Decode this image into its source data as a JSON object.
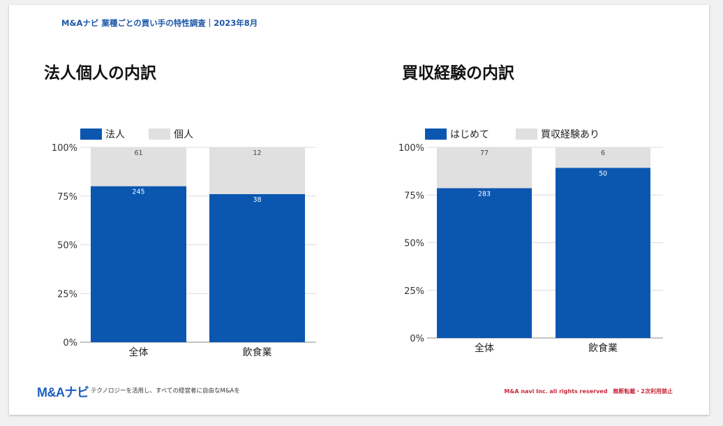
{
  "header": {
    "title": "M&Aナビ 業種ごとの買い手の特性調査｜2023年8月"
  },
  "panels": {
    "left_title": "法人個人の内訳",
    "right_title": "買収経験の内訳"
  },
  "chart_data": [
    {
      "type": "bar",
      "stacked": "percent",
      "title": "法人個人の内訳",
      "categories": [
        "全体",
        "飲食業"
      ],
      "series": [
        {
          "name": "法人",
          "values": [
            245,
            38
          ],
          "color": "#0b57b0"
        },
        {
          "name": "個人",
          "values": [
            61,
            12
          ],
          "color": "#e0e0e0"
        }
      ],
      "yticks": [
        "0%",
        "25%",
        "50%",
        "75%",
        "100%"
      ],
      "ylim": [
        0,
        100
      ],
      "legend": "top-left"
    },
    {
      "type": "bar",
      "stacked": "percent",
      "title": "買収経験の内訳",
      "categories": [
        "全体",
        "飲食業"
      ],
      "series": [
        {
          "name": "はじめて",
          "values": [
            283,
            50
          ],
          "color": "#0b57b0"
        },
        {
          "name": "買収経験あり",
          "values": [
            77,
            6
          ],
          "color": "#e0e0e0"
        }
      ],
      "yticks": [
        "0%",
        "25%",
        "50%",
        "75%",
        "100%"
      ],
      "ylim": [
        0,
        100
      ],
      "legend": "top-left"
    }
  ],
  "footer": {
    "brand": "M&Aナビ",
    "tagline": "テクノロジーを活用し、すべての経営者に自由なM&Aを",
    "copyright": "M&A navi Inc. all rights reserved　無断転載・2次利用禁止"
  }
}
